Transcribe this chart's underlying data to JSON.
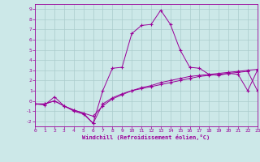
{
  "xlabel": "Windchill (Refroidissement éolien,°C)",
  "bg_color": "#cce8e8",
  "line_color": "#990099",
  "grid_color": "#aacccc",
  "xmin": 0,
  "xmax": 23,
  "ymin": -2.5,
  "ymax": 9.5,
  "yticks": [
    -2,
    -1,
    0,
    1,
    2,
    3,
    4,
    5,
    6,
    7,
    8,
    9
  ],
  "xticks": [
    0,
    1,
    2,
    3,
    4,
    5,
    6,
    7,
    8,
    9,
    10,
    11,
    12,
    13,
    14,
    15,
    16,
    17,
    18,
    19,
    20,
    21,
    22,
    23
  ],
  "line1_x": [
    0,
    1,
    2,
    3,
    4,
    5,
    6,
    7,
    8,
    9,
    10,
    11,
    12,
    13,
    14,
    15,
    16,
    17,
    18,
    19,
    20,
    21,
    22,
    23
  ],
  "line1_y": [
    -0.3,
    -0.4,
    0.4,
    -0.5,
    -1.0,
    -1.3,
    -2.2,
    1.0,
    3.2,
    3.3,
    6.6,
    7.4,
    7.5,
    8.9,
    7.5,
    5.0,
    3.3,
    3.2,
    2.6,
    2.5,
    2.7,
    2.6,
    1.0,
    3.0
  ],
  "line2_x": [
    0,
    1,
    2,
    3,
    4,
    5,
    6,
    7,
    8,
    9,
    10,
    11,
    12,
    13,
    14,
    15,
    16,
    17,
    18,
    19,
    20,
    21,
    22,
    23
  ],
  "line2_y": [
    -0.3,
    -0.3,
    0.0,
    -0.5,
    -0.9,
    -1.2,
    -1.5,
    -0.5,
    0.2,
    0.6,
    1.0,
    1.3,
    1.5,
    1.8,
    2.0,
    2.2,
    2.4,
    2.5,
    2.6,
    2.7,
    2.8,
    2.9,
    3.0,
    3.1
  ],
  "line3_x": [
    0,
    1,
    2,
    3,
    4,
    5,
    6,
    7,
    8,
    9,
    10,
    11,
    12,
    13,
    14,
    15,
    16,
    17,
    18,
    19,
    20,
    21,
    22,
    23
  ],
  "line3_y": [
    -0.3,
    -0.3,
    0.0,
    -0.5,
    -0.9,
    -1.2,
    -2.2,
    -0.3,
    0.3,
    0.7,
    1.0,
    1.2,
    1.4,
    1.6,
    1.8,
    2.0,
    2.2,
    2.4,
    2.5,
    2.6,
    2.7,
    2.8,
    2.9,
    1.0
  ]
}
